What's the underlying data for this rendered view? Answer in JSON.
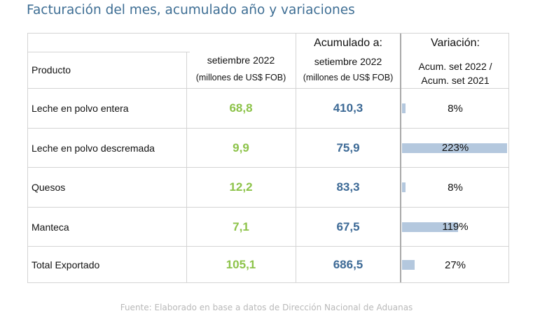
{
  "title": "Facturación del mes, acumulado año y variaciones",
  "header": {
    "product": "Producto",
    "month_line1": "setiembre 2022",
    "month_line2": "(millones de US$ FOB)",
    "acum_top": "Acumulado a:",
    "acum_line1": "setiembre 2022",
    "acum_line2": "(millones de US$ FOB)",
    "var_top": "Variación:",
    "var_line1": "Acum. set 2022 /",
    "var_line2": "Acum. set 2021"
  },
  "rows": [
    {
      "product": "Leche en polvo entera",
      "month": "68,8",
      "acum": "410,3",
      "variation": "8%",
      "variation_value": 8
    },
    {
      "product": "Leche en polvo descremada",
      "month": "9,9",
      "acum": "75,9",
      "variation": "223%",
      "variation_value": 223
    },
    {
      "product": "Quesos",
      "month": "12,2",
      "acum": "83,3",
      "variation": "8%",
      "variation_value": 8
    },
    {
      "product": "Manteca",
      "month": "7,1",
      "acum": "67,5",
      "variation": "119%",
      "variation_value": 119
    },
    {
      "product": "Total Exportado",
      "month": "105,1",
      "acum": "686,5",
      "variation": "27%",
      "variation_value": 27
    }
  ],
  "source": "Fuente: Elaborado en base a datos de Dirección Nacional de Aduanas",
  "colors": {
    "month_values": "#8dc34a",
    "acum_values": "#3d6a96",
    "bar": "#b4c8de",
    "title": "#3e6e94"
  }
}
